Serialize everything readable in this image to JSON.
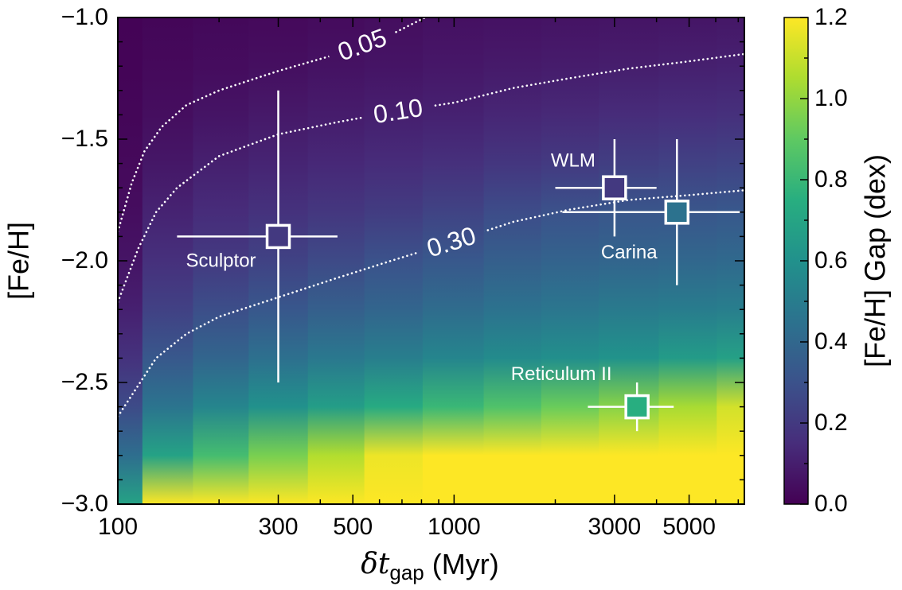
{
  "chart_data": {
    "type": "heatmap",
    "xlabel": [
      "δt",
      "gap",
      "(Myr)"
    ],
    "ylabel": "[Fe/H]",
    "xscale": "log",
    "xlim": [
      100,
      7300
    ],
    "ylim": [
      -3.0,
      -1.0
    ],
    "xticks": [
      100,
      300,
      500,
      1000,
      3000,
      5000
    ],
    "xminor": [
      200,
      400,
      600,
      700,
      800,
      900,
      2000,
      4000,
      6000,
      7000
    ],
    "yticks": [
      {
        "value": -3.0,
        "label": "−3.0"
      },
      {
        "value": -2.5,
        "label": "−2.5"
      },
      {
        "value": -2.0,
        "label": "−2.0"
      },
      {
        "value": -1.5,
        "label": "−1.5"
      },
      {
        "value": -1.0,
        "label": "−1.0"
      }
    ],
    "yminor": [
      -2.9,
      -2.8,
      -2.7,
      -2.6,
      -2.4,
      -2.3,
      -2.2,
      -2.1,
      -1.9,
      -1.8,
      -1.7,
      -1.6,
      -1.4,
      -1.3,
      -1.2,
      -1.1
    ],
    "colormap": "viridis",
    "colorbar_label": "[Fe/H] Gap (dex)",
    "clim": [
      0.0,
      1.2
    ],
    "cticks": [
      {
        "value": 0.0,
        "label": "0.0"
      },
      0.2,
      0.4,
      0.6,
      0.8,
      {
        "value": 1.0,
        "label": "1.0"
      },
      1.2
    ],
    "cminor": [
      0.1,
      0.3,
      0.5,
      0.7,
      0.9,
      1.1
    ],
    "heatmap": {
      "x": [
        100,
        140,
        200,
        300,
        450,
        650,
        1000,
        1500,
        2200,
        3300,
        5000,
        7300
      ],
      "y": [
        -1.0,
        -1.2,
        -1.4,
        -1.6,
        -1.8,
        -2.0,
        -2.2,
        -2.4,
        -2.6,
        -2.8,
        -3.0
      ],
      "z": [
        [
          0.006,
          0.01,
          0.016,
          0.026,
          0.041,
          0.066,
          0.107,
          0.172,
          0.273,
          0.43,
          0.69
        ],
        [
          0.016,
          0.026,
          0.044,
          0.074,
          0.115,
          0.163,
          0.231,
          0.33,
          0.46,
          0.69,
          1.2
        ],
        [
          0.023,
          0.039,
          0.065,
          0.105,
          0.146,
          0.204,
          0.285,
          0.39,
          0.54,
          0.83,
          1.2
        ],
        [
          0.028,
          0.047,
          0.081,
          0.121,
          0.169,
          0.235,
          0.325,
          0.44,
          0.6,
          0.95,
          1.2
        ],
        [
          0.034,
          0.057,
          0.093,
          0.134,
          0.189,
          0.266,
          0.36,
          0.48,
          0.66,
          1.06,
          1.2
        ],
        [
          0.043,
          0.066,
          0.102,
          0.146,
          0.21,
          0.3,
          0.39,
          0.51,
          0.73,
          1.17,
          1.2
        ],
        [
          0.052,
          0.075,
          0.11,
          0.162,
          0.238,
          0.33,
          0.42,
          0.54,
          0.8,
          1.2,
          1.2
        ],
        [
          0.056,
          0.084,
          0.125,
          0.185,
          0.277,
          0.36,
          0.45,
          0.57,
          0.86,
          1.2,
          1.2
        ],
        [
          0.061,
          0.091,
          0.136,
          0.204,
          0.3,
          0.38,
          0.47,
          0.59,
          0.92,
          1.2,
          1.2
        ],
        [
          0.065,
          0.098,
          0.147,
          0.22,
          0.32,
          0.39,
          0.49,
          0.61,
          0.98,
          1.2,
          1.2
        ],
        [
          0.069,
          0.104,
          0.155,
          0.23,
          0.32,
          0.4,
          0.5,
          0.65,
          1.04,
          1.2,
          1.2
        ],
        [
          0.074,
          0.11,
          0.164,
          0.24,
          0.33,
          0.41,
          0.51,
          0.68,
          1.12,
          1.2,
          1.2
        ]
      ]
    },
    "contours": [
      {
        "level": 0.05,
        "label": "0.05",
        "x": [
          100,
          110,
          120,
          135,
          160,
          200,
          300,
          450,
          650,
          820
        ],
        "y": [
          -1.88,
          -1.68,
          -1.55,
          -1.45,
          -1.36,
          -1.3,
          -1.22,
          -1.15,
          -1.07,
          -1.0
        ]
      },
      {
        "level": 0.1,
        "label": "0.10",
        "x": [
          100,
          115,
          130,
          150,
          200,
          300,
          450,
          650,
          1000,
          1500,
          2200,
          3300,
          5000,
          7300
        ],
        "y": [
          -2.17,
          -1.95,
          -1.8,
          -1.7,
          -1.57,
          -1.48,
          -1.43,
          -1.39,
          -1.35,
          -1.29,
          -1.25,
          -1.21,
          -1.18,
          -1.15
        ]
      },
      {
        "level": 0.3,
        "label": "0.30",
        "x": [
          100,
          130,
          160,
          200,
          300,
          450,
          650,
          1000,
          1500,
          2200,
          3300,
          5000,
          7300
        ],
        "y": [
          -2.64,
          -2.4,
          -2.3,
          -2.23,
          -2.15,
          -2.07,
          -2.0,
          -1.92,
          -1.84,
          -1.79,
          -1.75,
          -1.73,
          -1.71
        ]
      }
    ],
    "points": [
      {
        "name": "Sculptor",
        "x": 300,
        "y": -1.9,
        "xerr": 150,
        "yerr": 0.6,
        "value": 0.2
      },
      {
        "name": "WLM",
        "x": 3000,
        "y": -1.7,
        "xerr": 1000,
        "yerr": 0.2,
        "value": 0.2
      },
      {
        "name": "Carina",
        "x": 4600,
        "y": -1.8,
        "xerr": 2500,
        "yerr": 0.3,
        "value": 0.45
      },
      {
        "name": "Reticulum II",
        "x": 3500,
        "y": -2.6,
        "xerr": 1000,
        "yerr": 0.1,
        "value": 0.75
      }
    ]
  }
}
